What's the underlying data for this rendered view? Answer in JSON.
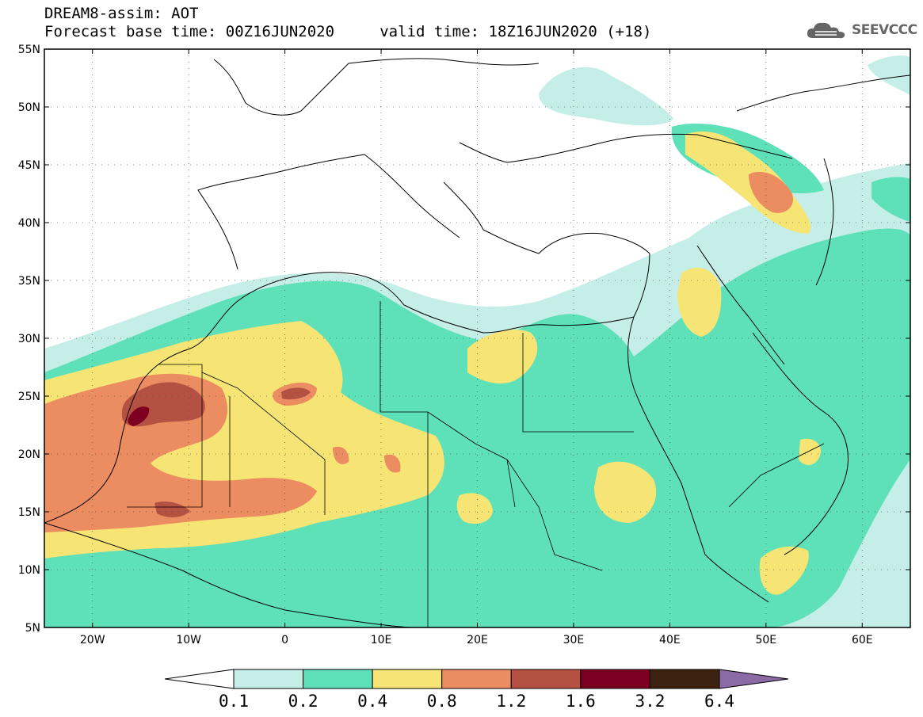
{
  "title": {
    "line1": "DREAM8-assim: AOT",
    "line2": "Forecast base time: 00Z16JUN2020     valid time: 18Z16JUN2020 (+18)"
  },
  "logo": {
    "text": "SEEVCCC",
    "icon": "cloud-icon",
    "color": "#666666"
  },
  "map": {
    "lon_range": [
      -25,
      65
    ],
    "lat_range": [
      5,
      55
    ],
    "lon_ticks": [
      {
        "value": -20,
        "label": "20W"
      },
      {
        "value": -10,
        "label": "10W"
      },
      {
        "value": 0,
        "label": "0"
      },
      {
        "value": 10,
        "label": "10E"
      },
      {
        "value": 20,
        "label": "20E"
      },
      {
        "value": 30,
        "label": "30E"
      },
      {
        "value": 40,
        "label": "40E"
      },
      {
        "value": 50,
        "label": "50E"
      },
      {
        "value": 60,
        "label": "60E"
      }
    ],
    "lat_ticks": [
      {
        "value": 55,
        "label": "55N"
      },
      {
        "value": 50,
        "label": "50N"
      },
      {
        "value": 45,
        "label": "45N"
      },
      {
        "value": 40,
        "label": "40N"
      },
      {
        "value": 35,
        "label": "35N"
      },
      {
        "value": 30,
        "label": "30N"
      },
      {
        "value": 25,
        "label": "25N"
      },
      {
        "value": 20,
        "label": "20N"
      },
      {
        "value": 15,
        "label": "15N"
      },
      {
        "value": 10,
        "label": "10N"
      },
      {
        "value": 5,
        "label": "5N"
      }
    ]
  },
  "colorbar": {
    "colors": [
      "#ffffff",
      "#c6eee8",
      "#5ee0b8",
      "#f6e574",
      "#ec8c61",
      "#b55142",
      "#7d0022",
      "#3e2210",
      "#8c6aa5"
    ],
    "labels": [
      "0.1",
      "0.2",
      "0.4",
      "0.8",
      "1.2",
      "1.6",
      "3.2",
      "6.4"
    ]
  }
}
